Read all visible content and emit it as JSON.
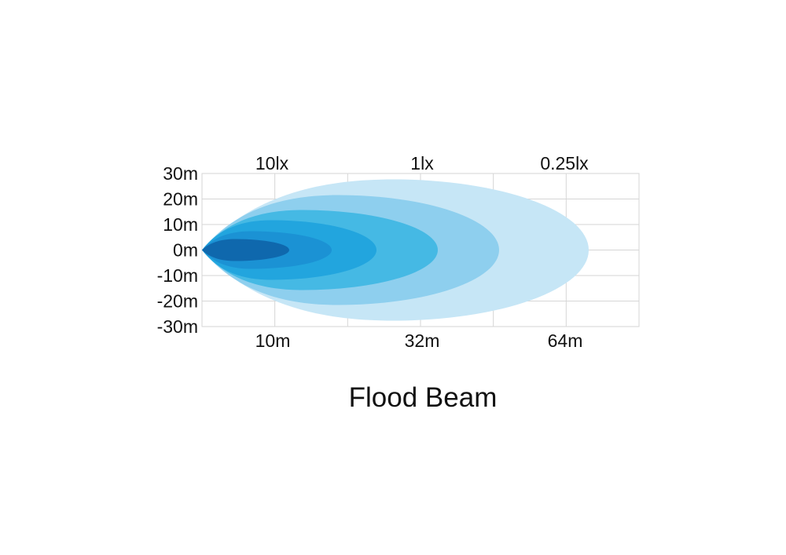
{
  "chart_data": {
    "type": "area",
    "title": "Flood Beam",
    "y_ticks": [
      "30m",
      "20m",
      "10m",
      "0m",
      "-10m",
      "-20m",
      "-30m"
    ],
    "x_labels": [
      "10m",
      "32m",
      "64m"
    ],
    "lux_labels": [
      "10lx",
      "1lx",
      "0.25lx"
    ],
    "ylim": [
      -30,
      30
    ],
    "grid": true,
    "contour_colors": [
      "#c6e6f6",
      "#8ecfee",
      "#45b9e4",
      "#22a5de",
      "#1b92d4",
      "#0f68ad"
    ]
  }
}
